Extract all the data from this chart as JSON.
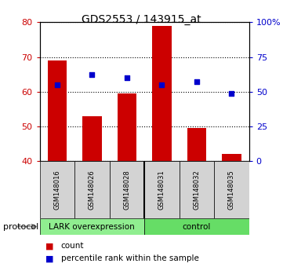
{
  "title": "GDS2553 / 143915_at",
  "samples": [
    "GSM148016",
    "GSM148026",
    "GSM148028",
    "GSM148031",
    "GSM148032",
    "GSM148035"
  ],
  "bar_values": [
    69.0,
    53.0,
    59.5,
    79.0,
    49.5,
    42.0
  ],
  "percentile_values": [
    62.0,
    65.0,
    64.0,
    62.0,
    63.0,
    59.5
  ],
  "bar_color": "#cc0000",
  "dot_color": "#0000cc",
  "ylim_left": [
    40,
    80
  ],
  "yticks_left": [
    40,
    50,
    60,
    70,
    80
  ],
  "yticks_right": [
    0,
    25,
    50,
    75,
    100
  ],
  "ytick_labels_right": [
    "0",
    "25",
    "50",
    "75",
    "100%"
  ],
  "groups": [
    {
      "label": "LARK overexpression",
      "start": 0,
      "end": 3,
      "color": "#90ee90"
    },
    {
      "label": "control",
      "start": 3,
      "end": 6,
      "color": "#66dd66"
    }
  ],
  "protocol_label": "protocol",
  "legend_items": [
    {
      "label": "count",
      "color": "#cc0000"
    },
    {
      "label": "percentile rank within the sample",
      "color": "#0000cc"
    }
  ],
  "bar_bottom": 40,
  "bar_width": 0.55,
  "tick_color_left": "#cc0000",
  "tick_color_right": "#0000cc"
}
